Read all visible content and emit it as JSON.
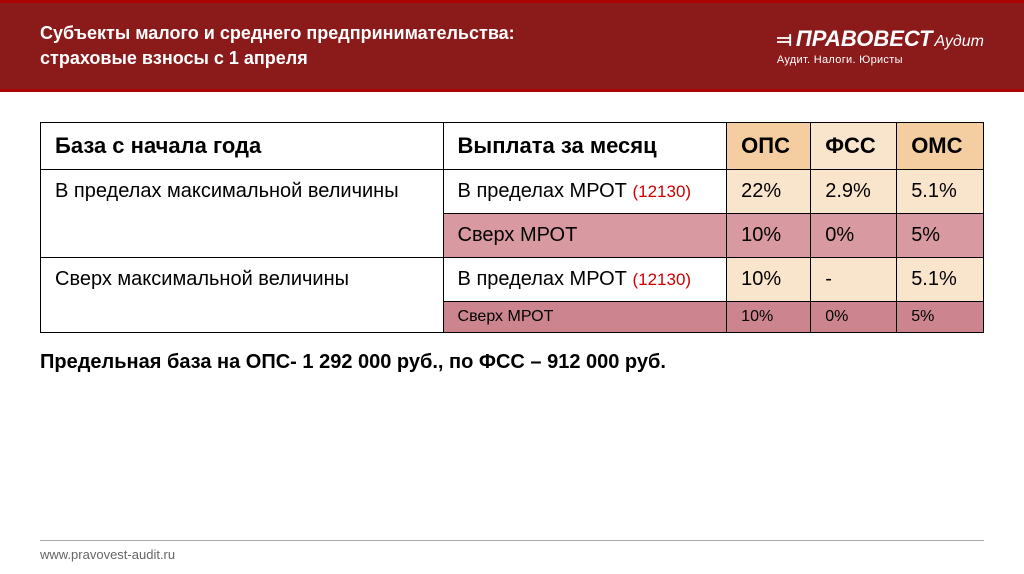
{
  "header": {
    "title": "Субъекты малого и среднего предпринимательства: страховые взносы с 1 апреля",
    "logo_main": "ПРАВОВЕСТ",
    "logo_audit": "Аудит",
    "logo_sub": "Аудит. Налоги. Юристы"
  },
  "table": {
    "headers": {
      "col1": "База с начала года",
      "col2": "Выплата за месяц",
      "col3": "ОПС",
      "col4": "ФСС",
      "col5": "ОМС"
    },
    "header_colors": {
      "col1": "#ffffff",
      "col2": "#ffffff",
      "col3": "#f4cda0",
      "col4": "#f9e4cc",
      "col5": "#f4cda0"
    },
    "rows": [
      {
        "base": "В пределах максимальной величины",
        "payout_prefix": "В пределах МРОТ",
        "mrot": "(12130)",
        "ops": "22%",
        "fss": "2.9%",
        "oms": "5.1%",
        "bg_payout": "#ffffff",
        "bg_data": "#f9e4cc"
      },
      {
        "payout": "Сверх МРОТ",
        "ops": "10%",
        "fss": "0%",
        "oms": "5%",
        "bg_all": "#d89aa0"
      },
      {
        "base": "Сверх максимальной величины",
        "payout_prefix": "В пределах МРОТ",
        "mrot": "(12130)",
        "ops": "10%",
        "fss": "-",
        "oms": "5.1%",
        "bg_payout": "#ffffff",
        "bg_data": "#f9e4cc"
      },
      {
        "payout": "Сверх МРОТ",
        "ops": "10%",
        "fss": "0%",
        "oms": "5%",
        "bg_all": "#cc858e",
        "small_text": true
      }
    ]
  },
  "footnote": "Предельная база на ОПС- 1 292 000 руб.,  по ФСС – 912 000 руб.",
  "footer": "www.pravovest-audit.ru",
  "colors": {
    "header_bg": "#8b1a1a",
    "mrot_color": "#c00000"
  }
}
